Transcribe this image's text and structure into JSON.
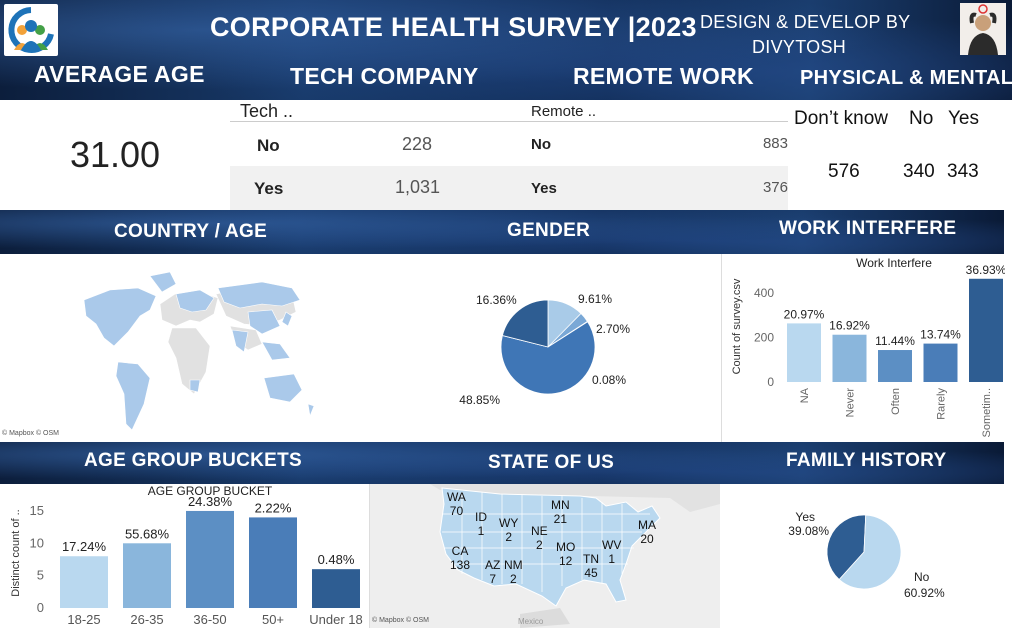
{
  "header": {
    "title": "CORPORATE HEALTH SURVEY |2023",
    "credit_line1": "DESIGN & DEVELOP BY",
    "credit_line2": "DIVYTOSH"
  },
  "sections": {
    "average_age": "AVERAGE AGE",
    "tech_company": "TECH COMPANY",
    "remote_work": "REMOTE WORK",
    "physical_mental": "PHYSICAL & MENTAL",
    "country_age": "COUNTRY / AGE",
    "gender": "GENDER",
    "work_interfere": "WORK INTERFERE",
    "age_group_buckets": "AGE GROUP BUCKETS",
    "state_of_us": "STATE OF US",
    "family_history": "FAMILY HISTORY"
  },
  "average_age": {
    "value": "31.00"
  },
  "tech_table": {
    "header": "Tech ..",
    "rows": [
      {
        "label": "No",
        "value": "228"
      },
      {
        "label": "Yes",
        "value": "1,031"
      }
    ]
  },
  "remote_table": {
    "header": "Remote ..",
    "rows": [
      {
        "label": "No",
        "value": "883"
      },
      {
        "label": "Yes",
        "value": "376"
      }
    ]
  },
  "physical_mental": {
    "headers": [
      "Don’t know",
      "No",
      "Yes"
    ],
    "values": [
      "576",
      "340",
      "343"
    ]
  },
  "map_credit": "© Mapbox © OSM",
  "map_credit_us": "© Mapbox © OSM",
  "us_map": {
    "mexico_label": "Mexico",
    "states": [
      {
        "abbr": "WA",
        "count": "70"
      },
      {
        "abbr": "ID",
        "count": "1"
      },
      {
        "abbr": "WY",
        "count": "2"
      },
      {
        "abbr": "NE",
        "count": "2"
      },
      {
        "abbr": "MN",
        "count": "21"
      },
      {
        "abbr": "MA",
        "count": "20"
      },
      {
        "abbr": "CA",
        "count": "138"
      },
      {
        "abbr": "AZ",
        "count": "7"
      },
      {
        "abbr": "NM",
        "count": "2"
      },
      {
        "abbr": "MO",
        "count": "12"
      },
      {
        "abbr": "TN",
        "count": "45"
      },
      {
        "abbr": "WV",
        "count": "1"
      }
    ]
  },
  "colors": {
    "light": "#b9d8ef",
    "mid_light": "#8ab6dc",
    "mid": "#5c8fc4",
    "mid_dark": "#4a7db8",
    "dark": "#2e5d92",
    "banner": "#14305a"
  },
  "chart_data": [
    {
      "type": "pie",
      "name": "gender",
      "labels": [
        "9.61%",
        "2.70%",
        "0.08%",
        "48.85%",
        "16.36%"
      ],
      "values": [
        9.61,
        2.7,
        0.08,
        48.85,
        16.36
      ],
      "colors": [
        "#a9cbe8",
        "#7aa8d6",
        "#4a7fbe",
        "#3f76b6",
        "#2e5d92"
      ]
    },
    {
      "type": "bar",
      "name": "work_interfere",
      "title": "Work Interfere",
      "ylabel": "Count of survey.csv",
      "categories": [
        "NA",
        "Never",
        "Often",
        "Rarely",
        "Sometim.."
      ],
      "values": [
        264,
        213,
        144,
        173,
        465
      ],
      "labels": [
        "20.97%",
        "16.92%",
        "11.44%",
        "13.74%",
        "36.93%"
      ],
      "ylim": [
        0,
        500
      ],
      "yticks": [
        0,
        200,
        400
      ],
      "colors": [
        "#b9d8ef",
        "#8ab6dc",
        "#5c8fc4",
        "#4a7db8",
        "#2e5d92"
      ]
    },
    {
      "type": "bar",
      "name": "age_group_bucket",
      "title": "AGE GROUP BUCKET",
      "ylabel": "Distinct count of ..",
      "categories": [
        "18-25",
        "26-35",
        "36-50",
        "50+",
        "Under 18"
      ],
      "values": [
        8,
        10,
        15,
        14,
        6
      ],
      "labels": [
        "17.24%",
        "55.68%",
        "24.38%",
        "2.22%",
        "0.48%"
      ],
      "ylim": [
        0,
        17
      ],
      "yticks": [
        0,
        5,
        10,
        15
      ],
      "colors": [
        "#b9d8ef",
        "#8ab6dc",
        "#5c8fc4",
        "#4a7db8",
        "#2e5d92"
      ]
    },
    {
      "type": "pie",
      "name": "family_history",
      "labels": [
        "Yes\n39.08%",
        "No\n60.92%"
      ],
      "series_labels": [
        "Yes",
        "No"
      ],
      "pct_labels": [
        "39.08%",
        "60.92%"
      ],
      "values": [
        39.08,
        60.92
      ],
      "colors": [
        "#2e5d92",
        "#b9d8ef"
      ]
    }
  ]
}
